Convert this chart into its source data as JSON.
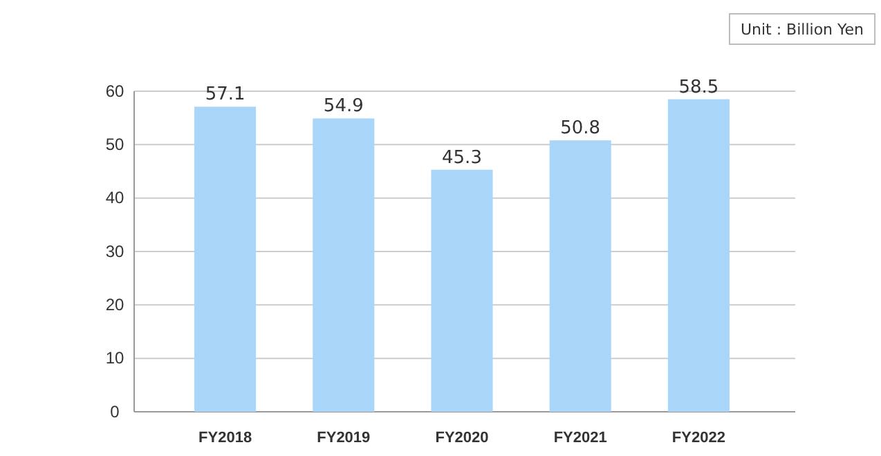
{
  "chart_data": {
    "type": "bar",
    "categories": [
      "FY2018",
      "FY2019",
      "FY2020",
      "FY2021",
      "FY2022"
    ],
    "values": [
      57.1,
      54.9,
      45.3,
      50.8,
      58.5
    ],
    "color": "#a9d5f8",
    "ylim": [
      0,
      60
    ],
    "yticks": [
      0,
      10,
      20,
      30,
      40,
      50,
      60
    ],
    "grid": "y",
    "data_labels": true,
    "annotations": [
      "Unit : Billion Yen"
    ]
  }
}
